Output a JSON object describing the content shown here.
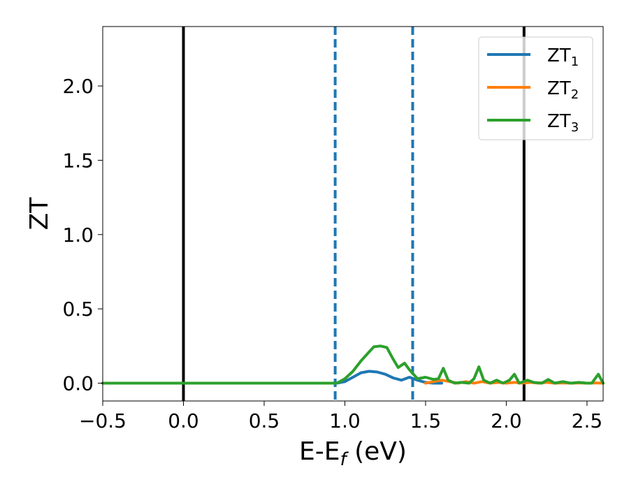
{
  "chart_data": {
    "type": "line",
    "xlabel": "E-E",
    "xlabel_sub": "f",
    "xlabel_unit": " (eV)",
    "ylabel": "ZT",
    "xlim": [
      -0.5,
      2.6
    ],
    "ylim": [
      -0.12,
      2.4
    ],
    "x_ticks": [
      -0.5,
      0.0,
      0.5,
      1.0,
      1.5,
      2.0,
      2.5
    ],
    "x_tick_labels": [
      "−0.5",
      "0.0",
      "0.5",
      "1.0",
      "1.5",
      "2.0",
      "2.5"
    ],
    "y_ticks": [
      0.0,
      0.5,
      1.0,
      1.5,
      2.0
    ],
    "y_tick_labels": [
      "0.0",
      "0.5",
      "1.0",
      "1.5",
      "2.0"
    ],
    "grid": false,
    "legend_position": "top-right",
    "vertical_lines": [
      {
        "x": 0.0,
        "style": "solid",
        "color": "#000000"
      },
      {
        "x": 2.11,
        "style": "solid",
        "color": "#000000"
      },
      {
        "x": 0.94,
        "style": "dashed",
        "color": "#1f77b4"
      },
      {
        "x": 1.42,
        "style": "dashed",
        "color": "#1f77b4"
      }
    ],
    "series": [
      {
        "name": "ZT",
        "name_sub": "1",
        "color": "#1f77b4",
        "x": [
          -0.5,
          0.95,
          1.0,
          1.05,
          1.1,
          1.15,
          1.2,
          1.25,
          1.3,
          1.35,
          1.4,
          1.45,
          1.5,
          1.55,
          1.6
        ],
        "y": [
          0.0,
          0.0,
          0.01,
          0.04,
          0.07,
          0.08,
          0.075,
          0.06,
          0.035,
          0.02,
          0.04,
          0.02,
          0.005,
          0.0,
          0.0
        ]
      },
      {
        "name": "ZT",
        "name_sub": "2",
        "color": "#ff7f0e",
        "x": [
          1.5,
          1.55,
          1.6,
          1.65,
          1.7,
          1.75,
          1.8,
          1.85,
          1.9,
          1.95,
          2.0,
          2.05,
          2.1,
          2.15,
          2.2,
          2.25,
          2.3,
          2.35,
          2.4,
          2.45,
          2.5,
          2.55,
          2.6
        ],
        "y": [
          0.0,
          0.01,
          0.02,
          0.01,
          0.0,
          0.01,
          0.0,
          0.01,
          0.0,
          0.005,
          0.0,
          0.005,
          0.0,
          0.005,
          0.0,
          0.005,
          0.0,
          0.002,
          0.0,
          0.002,
          0.0,
          0.002,
          0.0
        ]
      },
      {
        "name": "ZT",
        "name_sub": "3",
        "color": "#2ca02c",
        "x": [
          -0.5,
          0.95,
          1.0,
          1.05,
          1.1,
          1.15,
          1.18,
          1.22,
          1.26,
          1.3,
          1.33,
          1.37,
          1.4,
          1.45,
          1.5,
          1.55,
          1.58,
          1.61,
          1.64,
          1.68,
          1.72,
          1.77,
          1.8,
          1.83,
          1.86,
          1.9,
          1.94,
          1.98,
          2.02,
          2.05,
          2.08,
          2.13,
          2.17,
          2.22,
          2.26,
          2.3,
          2.35,
          2.4,
          2.45,
          2.5,
          2.53,
          2.57,
          2.6
        ],
        "y": [
          0.0,
          0.0,
          0.03,
          0.08,
          0.15,
          0.21,
          0.245,
          0.25,
          0.24,
          0.16,
          0.105,
          0.135,
          0.09,
          0.03,
          0.04,
          0.025,
          0.03,
          0.1,
          0.02,
          0.0,
          0.005,
          0.0,
          0.03,
          0.11,
          0.02,
          0.0,
          0.02,
          0.0,
          0.02,
          0.06,
          0.0,
          0.02,
          0.005,
          0.0,
          0.025,
          0.0,
          0.01,
          0.0,
          0.005,
          0.0,
          0.0,
          0.06,
          0.0
        ]
      }
    ]
  }
}
